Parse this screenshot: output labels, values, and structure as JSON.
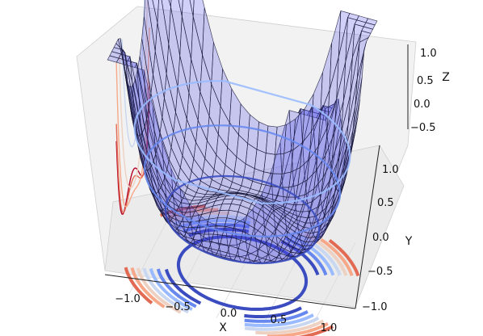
{
  "chart_data": {
    "type": "surface3d",
    "surface_function": "z = (x^2 + y^2)^2 - (x^2 + y^2)",
    "surface_color": "#4a4ae6",
    "wireframe_color": "#1b1b3a",
    "xlabel": "X",
    "ylabel": "Y",
    "zlabel": "Z",
    "xlim": [
      -1.25,
      1.25
    ],
    "ylim": [
      -1.1,
      1.1
    ],
    "zlim": [
      -0.7,
      1.2
    ],
    "x_ticks": [
      "−1.0",
      "−0.5",
      "0.0",
      "0.5",
      "1.0"
    ],
    "y_ticks": [
      "−0.5",
      "0.0",
      "0.5",
      "1.0"
    ],
    "y_ticks_lower": [
      "−1.0"
    ],
    "z_ticks": [
      "−0.5",
      "0.0",
      "0.5",
      "1.0"
    ],
    "grid": true,
    "contour_projections": [
      "floor (z-offset)",
      "back wall (x-offset)",
      "side wall (y-offset)"
    ],
    "colormap": "coolwarm",
    "contour_level_colors": [
      "#3b4cc0",
      "#6788ee",
      "#9abbff",
      "#c9d7f0",
      "#edd1c2",
      "#f7a889",
      "#e26952",
      "#b40426"
    ]
  }
}
